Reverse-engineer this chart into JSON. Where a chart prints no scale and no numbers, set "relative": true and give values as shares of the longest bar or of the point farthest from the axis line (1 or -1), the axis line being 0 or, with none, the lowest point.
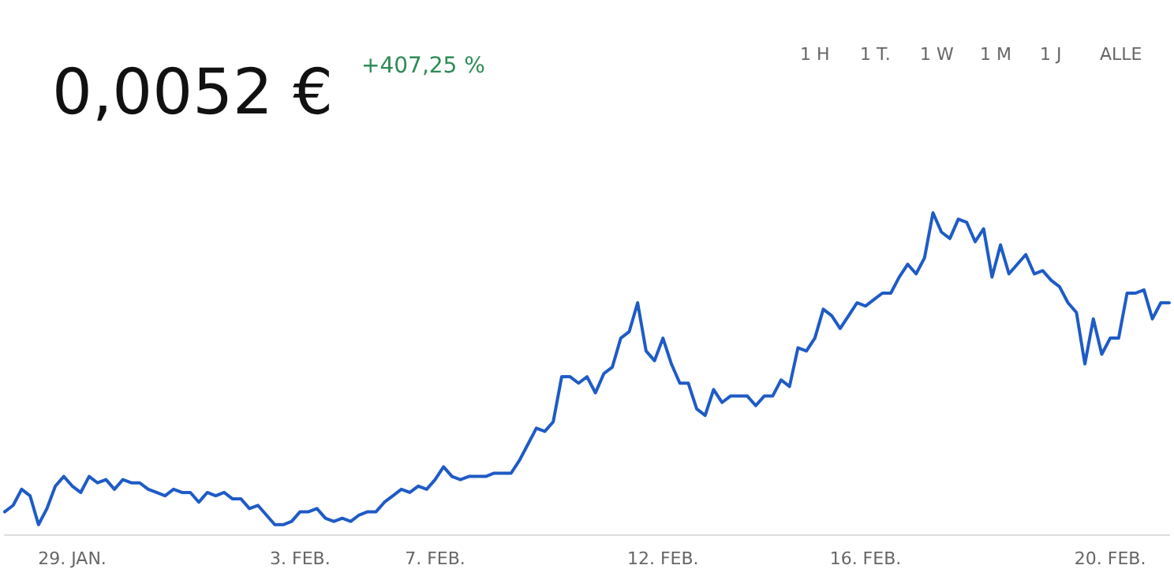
{
  "chart_data": {
    "type": "line",
    "title": "0,0052 €",
    "subtitle": "+407,25 %",
    "annotations": [
      "1 H",
      "1 T.",
      "1 W",
      "1 M",
      "1 J",
      "ALLE"
    ],
    "relative": true,
    "grid": false,
    "marker": "none",
    "line_style": "solid",
    "categories": [
      null,
      null,
      null,
      null,
      null,
      null,
      null,
      null,
      "29. JAN.",
      null,
      null,
      null,
      null,
      null,
      null,
      null,
      null,
      null,
      null,
      null,
      null,
      null,
      null,
      null,
      null,
      null,
      null,
      null,
      null,
      null,
      null,
      null,
      null,
      null,
      null,
      "3. FEB.",
      null,
      null,
      null,
      null,
      null,
      null,
      null,
      null,
      null,
      null,
      null,
      null,
      null,
      null,
      null,
      "7. FEB.",
      null,
      null,
      null,
      null,
      null,
      null,
      null,
      null,
      null,
      null,
      null,
      null,
      null,
      null,
      null,
      null,
      null,
      null,
      null,
      null,
      null,
      null,
      null,
      null,
      null,
      null,
      "12. FEB.",
      null,
      null,
      null,
      null,
      null,
      null,
      null,
      null,
      null,
      null,
      null,
      null,
      null,
      null,
      null,
      null,
      null,
      null,
      null,
      null,
      null,
      null,
      null,
      "16. FEB.",
      null,
      null,
      null,
      null,
      null,
      null,
      null,
      null,
      null,
      null,
      null,
      null,
      null,
      null,
      null,
      null,
      null,
      null,
      null,
      null,
      null,
      null,
      null,
      null,
      null,
      null,
      null,
      null,
      "20. FEB.",
      null,
      null,
      null,
      null,
      null,
      null,
      null
    ],
    "series": [
      {
        "color": "#1e5bc6",
        "values": [
          0.07,
          0.09,
          0.14,
          0.12,
          0.03,
          0.08,
          0.15,
          0.18,
          0.15,
          0.13,
          0.18,
          0.16,
          0.17,
          0.14,
          0.17,
          0.16,
          0.16,
          0.14,
          0.13,
          0.12,
          0.14,
          0.13,
          0.13,
          0.1,
          0.13,
          0.12,
          0.13,
          0.11,
          0.11,
          0.08,
          0.09,
          0.06,
          0.03,
          0.03,
          0.04,
          0.07,
          0.07,
          0.08,
          0.05,
          0.04,
          0.05,
          0.04,
          0.06,
          0.07,
          0.07,
          0.1,
          0.12,
          0.14,
          0.13,
          0.15,
          0.14,
          0.17,
          0.21,
          0.18,
          0.17,
          0.18,
          0.18,
          0.18,
          0.19,
          0.19,
          0.19,
          0.23,
          0.28,
          0.33,
          0.32,
          0.35,
          0.49,
          0.49,
          0.47,
          0.49,
          0.44,
          0.5,
          0.52,
          0.61,
          0.63,
          0.72,
          0.57,
          0.54,
          0.61,
          0.53,
          0.47,
          0.47,
          0.39,
          0.37,
          0.45,
          0.41,
          0.43,
          0.43,
          0.43,
          0.4,
          0.43,
          0.43,
          0.48,
          0.46,
          0.58,
          0.57,
          0.61,
          0.7,
          0.68,
          0.64,
          0.68,
          0.72,
          0.71,
          0.73,
          0.75,
          0.75,
          0.8,
          0.84,
          0.81,
          0.86,
          1,
          0.94,
          0.92,
          0.98,
          0.97,
          0.91,
          0.95,
          0.8,
          0.9,
          0.81,
          0.84,
          0.87,
          0.81,
          0.82,
          0.79,
          0.77,
          0.72,
          0.69,
          0.53,
          0.67,
          0.56,
          0.61,
          0.61,
          0.75,
          0.75,
          0.76,
          0.67,
          0.72,
          0.72
        ]
      }
    ]
  }
}
